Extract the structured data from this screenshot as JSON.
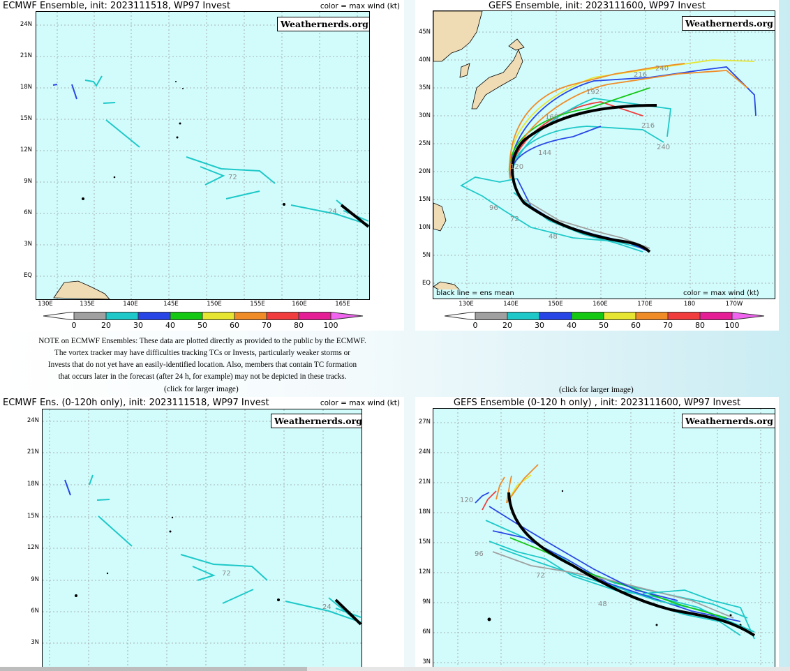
{
  "brand": "Weathernerds.org",
  "colorbar": {
    "ticks": [
      "0",
      "20",
      "30",
      "40",
      "50",
      "60",
      "70",
      "80",
      "100"
    ],
    "colors": [
      "#a0a0a0",
      "#1ec8c8",
      "#2846e6",
      "#14c814",
      "#e6e632",
      "#f08c28",
      "#f03c3c",
      "#e61e96",
      "#f064f0"
    ]
  },
  "panels": {
    "ecmwf_full": {
      "title": "ECMWF Ensemble, init: 2023111518, WP97 Invest",
      "legend": "color = max wind (kt)",
      "y_labels": [
        "24N",
        "21N",
        "18N",
        "15N",
        "12N",
        "9N",
        "6N",
        "3N",
        "EQ"
      ],
      "x_labels": [
        "130E",
        "135E",
        "140E",
        "145E",
        "150E",
        "155E",
        "160E",
        "165E"
      ],
      "annotations": [
        "72",
        "24"
      ]
    },
    "gefs_full": {
      "title": "GEFS Ensemble, init: 2023111600, WP97 Invest",
      "y_labels": [
        "45N",
        "40N",
        "35N",
        "30N",
        "25N",
        "20N",
        "15N",
        "10N",
        "5N",
        "EQ"
      ],
      "x_labels": [
        "130E",
        "140E",
        "150E",
        "160E",
        "170E",
        "180",
        "170W"
      ],
      "bottom_left": "black line = ens mean",
      "bottom_right": "color = max wind (kt)",
      "annotations": [
        "240",
        "216",
        "192",
        "168",
        "144",
        "120",
        "96",
        "72",
        "48",
        "216",
        "240"
      ]
    },
    "ecmwf_120": {
      "title": "ECMWF Ens. (0-120h only), init: 2023111518, WP97 Invest",
      "legend": "color = max wind (kt)",
      "y_labels": [
        "24N",
        "21N",
        "18N",
        "15N",
        "12N",
        "9N",
        "6N",
        "3N"
      ],
      "annotations": [
        "72",
        "24"
      ]
    },
    "gefs_120": {
      "title": "GEFS Ensemble (0-120 h only) , init: 2023111600, WP97 Invest",
      "y_labels": [
        "27N",
        "24N",
        "21N",
        "18N",
        "15N",
        "12N",
        "9N",
        "6N",
        "3N"
      ],
      "annotations": [
        "120",
        "96",
        "72",
        "48"
      ]
    }
  },
  "note": {
    "lines": [
      "NOTE on ECMWF Ensembles: These data are plotted directly as provided to the public by the ECMWF.",
      "The vortex tracker may have difficulties tracking TCs or Invests, particularly weaker storms or",
      "Invests that do not yet have an easily-identified location. Also, members that contain TC formation",
      "that occurs later in the forecast (after 24 h, for example) may not be depicted in these tracks."
    ]
  },
  "click_label": "(click for larger image)"
}
